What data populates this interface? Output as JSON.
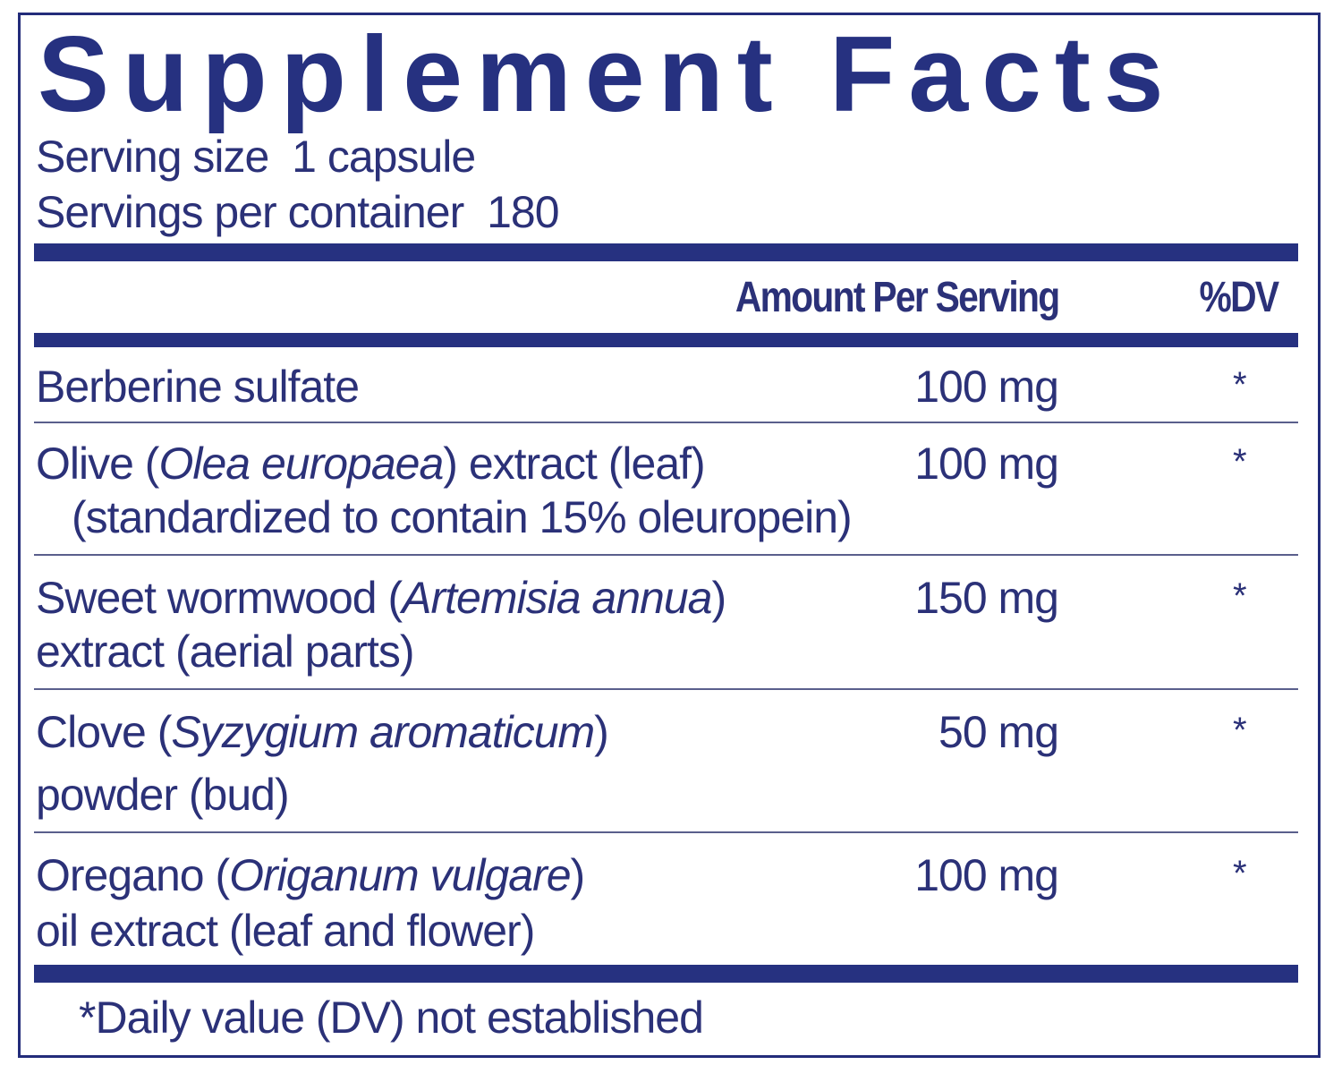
{
  "title": "Supplement Facts",
  "serving_size_label": "Serving size",
  "serving_size_value": "1 capsule",
  "servings_per_container_label": "Servings per container",
  "servings_per_container_value": "180",
  "header": {
    "amount": "Amount Per Serving",
    "dv": "%DV"
  },
  "rows": [
    {
      "name": "Berberine sulfate",
      "amount": "100 mg",
      "dv": "*"
    },
    {
      "name_pre": "Olive (",
      "name_italic": "Olea europaea",
      "name_post": ") extract (leaf)",
      "line2": "(standardized to contain 15% oleuropein)",
      "amount": "100 mg",
      "dv": "*"
    },
    {
      "name_pre": "Sweet wormwood (",
      "name_italic": "Artemisia annua",
      "name_post": ")",
      "line2": "extract (aerial parts)",
      "amount": "150 mg",
      "dv": "*"
    },
    {
      "name_pre": "Clove (",
      "name_italic": "Syzygium aromaticum",
      "name_post": ")",
      "line2": "powder (bud)",
      "amount": "50 mg",
      "dv": "*"
    },
    {
      "name_pre": "Oregano (",
      "name_italic": "Origanum vulgare",
      "name_post": ")",
      "line2": "oil extract (leaf and flower)",
      "amount": "100 mg",
      "dv": "*"
    }
  ],
  "footnote": "*Daily value (DV) not established",
  "colors": {
    "navy": "#263180",
    "text": "#2b3178"
  }
}
